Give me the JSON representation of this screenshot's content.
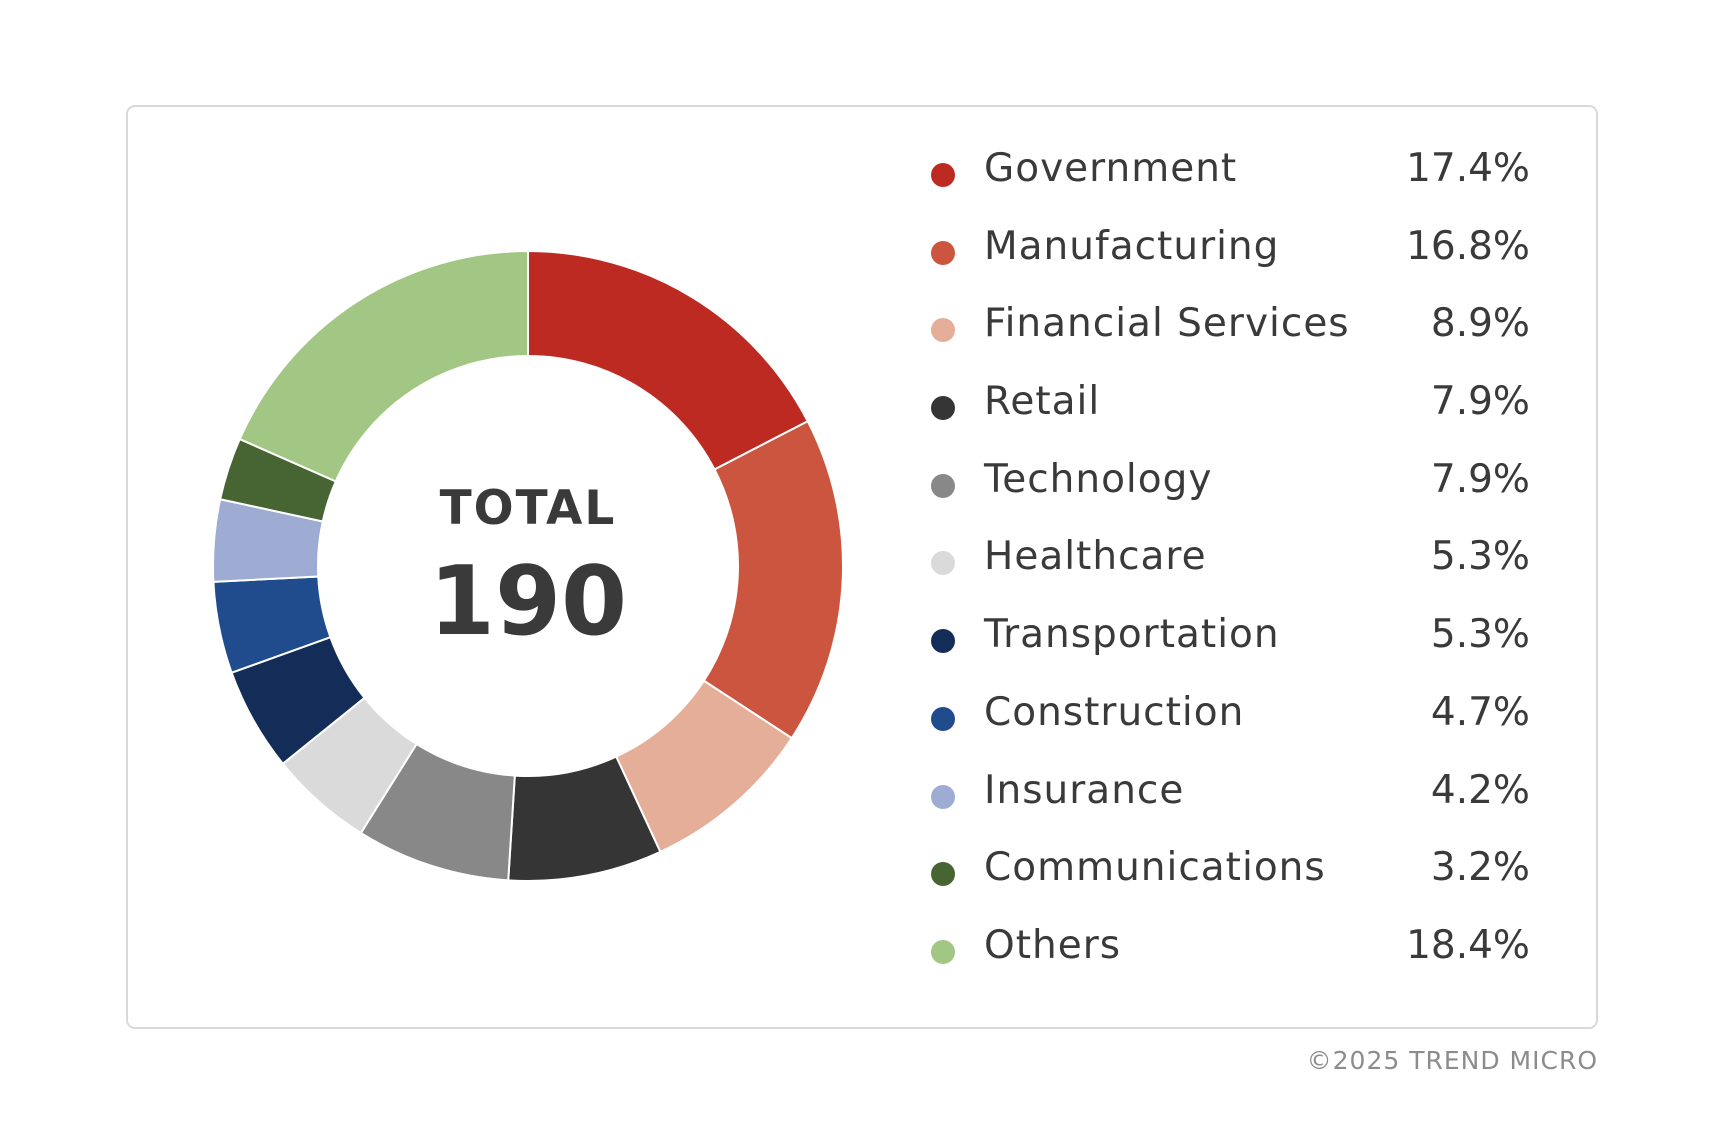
{
  "chart_data": {
    "type": "pie",
    "variant": "donut",
    "center_label": "TOTAL",
    "center_value": "190",
    "categories": [
      "Government",
      "Manufacturing",
      "Financial Services",
      "Retail",
      "Technology",
      "Healthcare",
      "Transportation",
      "Construction",
      "Insurance",
      "Communications",
      "Others"
    ],
    "values": [
      17.4,
      16.8,
      8.9,
      7.9,
      7.9,
      5.3,
      5.3,
      4.7,
      4.2,
      3.2,
      18.4
    ],
    "value_labels": [
      "17.4%",
      "16.8%",
      "8.9%",
      "7.9%",
      "7.9%",
      "5.3%",
      "5.3%",
      "4.7%",
      "4.2%",
      "3.2%",
      "18.4%"
    ],
    "colors": [
      "#bd2a22",
      "#cb553e",
      "#e5ae98",
      "#353535",
      "#888888",
      "#dadada",
      "#142d58",
      "#204c8e",
      "#9eacd3",
      "#466532",
      "#a2c683"
    ],
    "legend_position": "right"
  },
  "footer": {
    "copyright": "©2025 TREND MICRO"
  }
}
